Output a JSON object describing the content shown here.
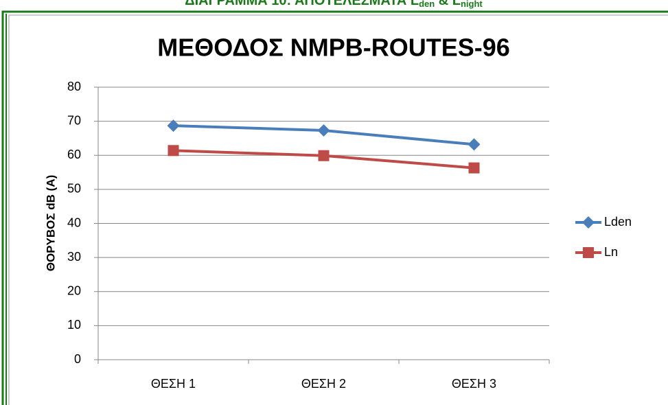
{
  "header": [
    "ΔΙΑΓΡΑΜΜΑ 10: ΑΠΟΤΕΛΕΣΜΑΤΑ L",
    "den",
    " & L",
    "night"
  ],
  "chart_data": {
    "type": "line",
    "title": "ΜΕΘΟΔΟΣ NMPB-ROUTES-96",
    "y_label": "ΘΟΡΥΒΟΣ dB (A)",
    "categories": [
      "ΘΕΣΗ 1",
      "ΘΕΣΗ 2",
      "ΘΕΣΗ 3"
    ],
    "series": [
      {
        "name": "Lden",
        "color": "#4a7ebb",
        "marker": "diamond",
        "values": [
          68.7,
          67.3,
          63.2
        ]
      },
      {
        "name": "Ln",
        "color": "#be4b48",
        "marker": "square",
        "values": [
          61.4,
          59.9,
          56.3
        ]
      }
    ],
    "ylim": [
      0,
      80
    ],
    "yticks": [
      0,
      10,
      20,
      30,
      40,
      50,
      60,
      70,
      80
    ],
    "grid": true,
    "legend": "right"
  }
}
